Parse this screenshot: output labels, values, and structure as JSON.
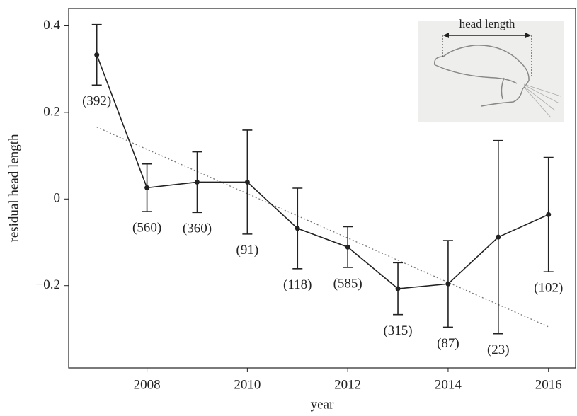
{
  "chart_data": {
    "type": "line",
    "x_label": "year",
    "y_label": "residual head length",
    "x": [
      2007,
      2008,
      2009,
      2010,
      2011,
      2012,
      2013,
      2014,
      2015,
      2016
    ],
    "values": [
      0.333,
      0.026,
      0.039,
      0.039,
      -0.068,
      -0.111,
      -0.207,
      -0.196,
      -0.088,
      -0.036
    ],
    "errors": [
      0.07,
      0.055,
      0.07,
      0.12,
      0.093,
      0.047,
      0.06,
      0.1,
      0.223,
      0.132
    ],
    "sample_sizes": [
      "(392)",
      "(560)",
      "(360)",
      "(91)",
      "(118)",
      "(585)",
      "(315)",
      "(87)",
      "(23)",
      "(102)"
    ],
    "color": "#222222",
    "trend": {
      "x": [
        2007,
        2016
      ],
      "values": [
        0.166,
        -0.295
      ],
      "color": "#777777"
    },
    "xlim": [
      2006.44,
      2016.54
    ],
    "xticks": [
      2008,
      2010,
      2012,
      2014,
      2016
    ],
    "ylim": [
      -0.39,
      0.44
    ],
    "yticks": [
      0.4,
      0.2,
      0,
      {
        "value": -0.2,
        "label": "−0.2"
      }
    ],
    "inset_label": "head length"
  }
}
